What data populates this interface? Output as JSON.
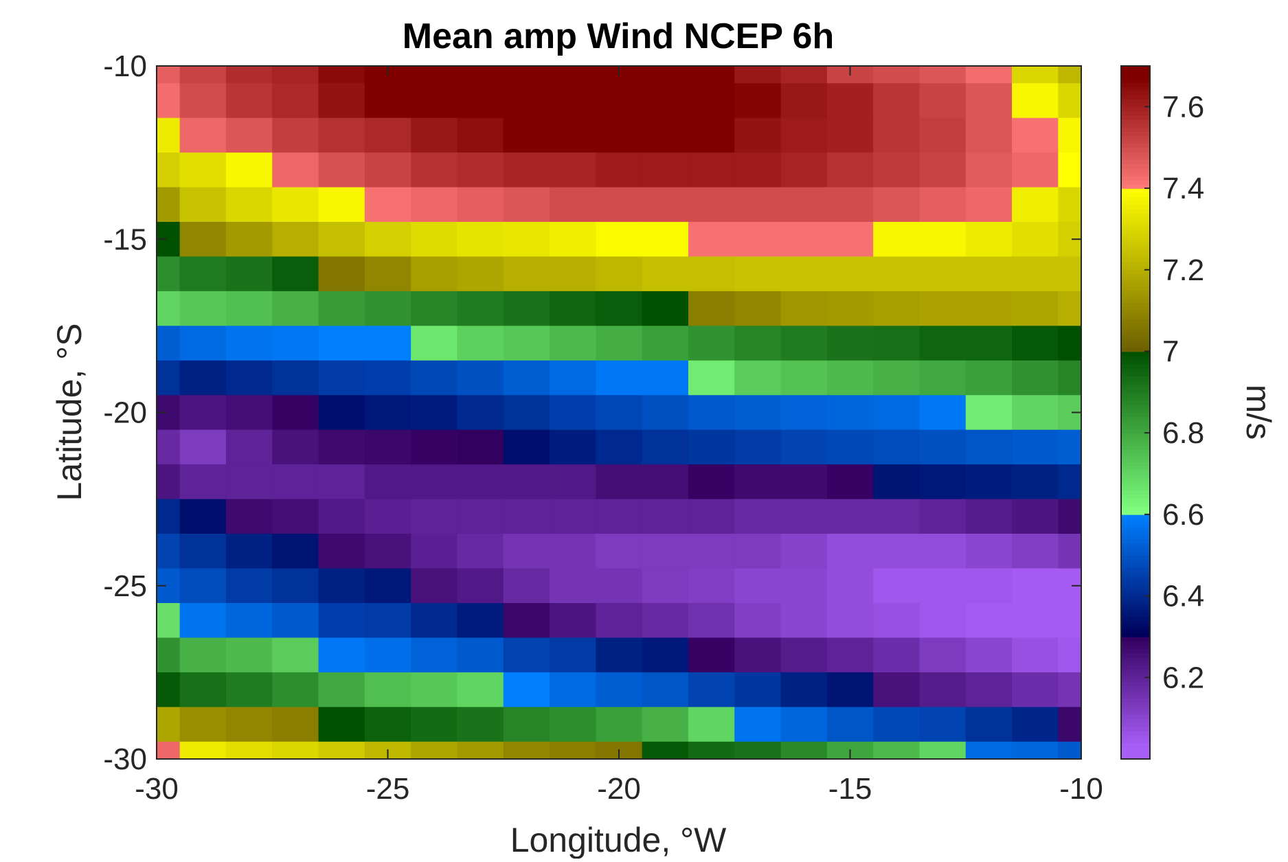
{
  "chart_data": {
    "type": "heatmap",
    "title": "Mean amp Wind NCEP 6h",
    "xlabel": "Longitude, °W",
    "ylabel": "Latitude, °S",
    "colorbar_label": "m/s",
    "xlim": [
      -30,
      -10
    ],
    "ylim": [
      -30,
      -10
    ],
    "clim": [
      6.0,
      7.7
    ],
    "xticks": [
      -30,
      -25,
      -20,
      -15,
      -10
    ],
    "yticks": [
      -30,
      -25,
      -20,
      -15,
      -10
    ],
    "cticks": [
      6.2,
      6.4,
      6.6,
      6.8,
      7.0,
      7.2,
      7.4,
      7.6
    ],
    "xtick_labels": [
      "-30",
      "-25",
      "-20",
      "-15",
      "-10"
    ],
    "ytick_labels": [
      "-30",
      "-25",
      "-20",
      "-15",
      "-10"
    ],
    "ctick_labels": [
      "6.2",
      "6.4",
      "6.6",
      "6.8",
      "7",
      "7.2",
      "7.4",
      "7.6"
    ],
    "grid": false,
    "colormap_stops": [
      {
        "value": 6.03,
        "color": "#A95EF8"
      },
      {
        "value": 6.3,
        "color": "#32005F"
      },
      {
        "value": 6.305,
        "color": "#00005A"
      },
      {
        "value": 6.6,
        "color": "#0080FF"
      },
      {
        "value": 6.605,
        "color": "#80FF80"
      },
      {
        "value": 7.0,
        "color": "#005000"
      },
      {
        "value": 7.005,
        "color": "#6E6000"
      },
      {
        "value": 7.4,
        "color": "#FFFF00"
      },
      {
        "value": 7.405,
        "color": "#FF7878"
      },
      {
        "value": 7.67,
        "color": "#800000"
      }
    ],
    "x_edges": [
      -30,
      -29.5,
      -28.5,
      -27.5,
      -26.5,
      -25.5,
      -24.5,
      -23.5,
      -22.5,
      -21.5,
      -20.5,
      -19.5,
      -18.5,
      -17.5,
      -16.5,
      -15.5,
      -14.5,
      -13.5,
      -12.5,
      -11.5,
      -10.5,
      -10
    ],
    "y_edges": [
      -10,
      -10.5,
      -11.5,
      -12.5,
      -13.5,
      -14.5,
      -15.5,
      -16.5,
      -17.5,
      -18.5,
      -19.5,
      -20.5,
      -21.5,
      -22.5,
      -23.5,
      -24.5,
      -25.5,
      -26.5,
      -27.5,
      -28.5,
      -29.5,
      -30
    ],
    "z": [
      [
        7.46,
        7.52,
        7.57,
        7.59,
        7.65,
        7.67,
        7.67,
        7.67,
        7.67,
        7.67,
        7.67,
        7.67,
        7.67,
        7.62,
        7.59,
        7.52,
        7.5,
        7.48,
        7.43,
        7.3,
        7.22
      ],
      [
        7.43,
        7.5,
        7.55,
        7.58,
        7.63,
        7.67,
        7.67,
        7.67,
        7.67,
        7.67,
        7.67,
        7.67,
        7.67,
        7.66,
        7.62,
        7.6,
        7.55,
        7.52,
        7.48,
        7.38,
        7.3
      ],
      [
        7.35,
        7.44,
        7.48,
        7.53,
        7.56,
        7.58,
        7.62,
        7.64,
        7.67,
        7.67,
        7.67,
        7.67,
        7.67,
        7.63,
        7.61,
        7.6,
        7.55,
        7.53,
        7.48,
        7.42,
        7.38
      ],
      [
        7.28,
        7.32,
        7.38,
        7.44,
        7.49,
        7.52,
        7.56,
        7.57,
        7.59,
        7.59,
        7.61,
        7.61,
        7.61,
        7.61,
        7.59,
        7.56,
        7.54,
        7.52,
        7.47,
        7.44,
        7.4
      ],
      [
        7.15,
        7.25,
        7.3,
        7.34,
        7.38,
        7.42,
        7.44,
        7.46,
        7.48,
        7.5,
        7.5,
        7.5,
        7.5,
        7.5,
        7.5,
        7.5,
        7.48,
        7.46,
        7.44,
        7.36,
        7.3
      ],
      [
        7.0,
        7.1,
        7.15,
        7.2,
        7.24,
        7.28,
        7.31,
        7.33,
        7.34,
        7.36,
        7.39,
        7.39,
        7.42,
        7.42,
        7.42,
        7.42,
        7.38,
        7.38,
        7.35,
        7.32,
        7.28
      ],
      [
        6.86,
        6.9,
        6.92,
        6.97,
        7.06,
        7.1,
        7.16,
        7.18,
        7.2,
        7.2,
        7.22,
        7.24,
        7.24,
        7.25,
        7.25,
        7.25,
        7.25,
        7.25,
        7.25,
        7.25,
        7.25
      ],
      [
        6.7,
        6.73,
        6.75,
        6.78,
        6.83,
        6.85,
        6.88,
        6.9,
        6.92,
        6.95,
        6.97,
        7.0,
        7.08,
        7.1,
        7.14,
        7.15,
        7.16,
        7.17,
        7.17,
        7.18,
        7.2
      ],
      [
        6.52,
        6.55,
        6.57,
        6.58,
        6.6,
        6.6,
        6.66,
        6.71,
        6.73,
        6.76,
        6.79,
        6.82,
        6.85,
        6.88,
        6.9,
        6.92,
        6.93,
        6.95,
        6.95,
        6.98,
        7.0
      ],
      [
        6.42,
        6.38,
        6.4,
        6.42,
        6.44,
        6.45,
        6.47,
        6.49,
        6.52,
        6.55,
        6.58,
        6.58,
        6.65,
        6.72,
        6.74,
        6.76,
        6.78,
        6.8,
        6.82,
        6.85,
        6.88
      ],
      [
        6.27,
        6.24,
        6.26,
        6.29,
        6.34,
        6.36,
        6.37,
        6.4,
        6.42,
        6.45,
        6.47,
        6.49,
        6.51,
        6.52,
        6.53,
        6.54,
        6.55,
        6.58,
        6.65,
        6.7,
        6.72
      ],
      [
        6.18,
        6.13,
        6.2,
        6.25,
        6.27,
        6.28,
        6.29,
        6.3,
        6.34,
        6.37,
        6.4,
        6.42,
        6.43,
        6.44,
        6.46,
        6.47,
        6.48,
        6.49,
        6.5,
        6.51,
        6.52
      ],
      [
        6.24,
        6.2,
        6.2,
        6.2,
        6.2,
        6.23,
        6.23,
        6.23,
        6.23,
        6.23,
        6.26,
        6.26,
        6.29,
        6.27,
        6.27,
        6.29,
        6.35,
        6.36,
        6.37,
        6.38,
        6.4
      ],
      [
        6.4,
        6.34,
        6.27,
        6.26,
        6.23,
        6.21,
        6.2,
        6.2,
        6.2,
        6.2,
        6.2,
        6.2,
        6.2,
        6.18,
        6.18,
        6.18,
        6.18,
        6.2,
        6.22,
        6.24,
        6.27
      ],
      [
        6.46,
        6.42,
        6.38,
        6.35,
        6.27,
        6.25,
        6.21,
        6.18,
        6.15,
        6.15,
        6.13,
        6.13,
        6.13,
        6.13,
        6.11,
        6.08,
        6.08,
        6.08,
        6.1,
        6.12,
        6.15
      ],
      [
        6.51,
        6.48,
        6.44,
        6.42,
        6.38,
        6.36,
        6.25,
        6.23,
        6.18,
        6.15,
        6.15,
        6.13,
        6.12,
        6.1,
        6.1,
        6.08,
        6.05,
        6.05,
        6.05,
        6.04,
        6.04
      ],
      [
        6.68,
        6.57,
        6.54,
        6.51,
        6.45,
        6.44,
        6.4,
        6.37,
        6.28,
        6.24,
        6.2,
        6.18,
        6.16,
        6.12,
        6.1,
        6.08,
        6.07,
        6.05,
        6.04,
        6.04,
        6.04
      ],
      [
        6.85,
        6.78,
        6.76,
        6.72,
        6.58,
        6.56,
        6.53,
        6.51,
        6.46,
        6.44,
        6.38,
        6.36,
        6.29,
        6.25,
        6.22,
        6.2,
        6.17,
        6.13,
        6.1,
        6.07,
        6.05
      ],
      [
        6.98,
        6.93,
        6.9,
        6.86,
        6.8,
        6.75,
        6.73,
        6.7,
        6.6,
        6.55,
        6.52,
        6.5,
        6.46,
        6.43,
        6.38,
        6.35,
        6.25,
        6.22,
        6.2,
        6.17,
        6.15
      ],
      [
        7.18,
        7.12,
        7.1,
        7.08,
        7.0,
        6.96,
        6.94,
        6.92,
        6.88,
        6.86,
        6.82,
        6.78,
        6.7,
        6.57,
        6.54,
        6.5,
        6.47,
        6.46,
        6.42,
        6.39,
        6.28
      ],
      [
        7.44,
        7.35,
        7.32,
        7.3,
        7.27,
        7.22,
        7.18,
        7.15,
        7.1,
        7.08,
        7.06,
        6.98,
        6.94,
        6.92,
        6.87,
        6.81,
        6.76,
        6.7,
        6.55,
        6.54,
        6.51
      ]
    ]
  }
}
